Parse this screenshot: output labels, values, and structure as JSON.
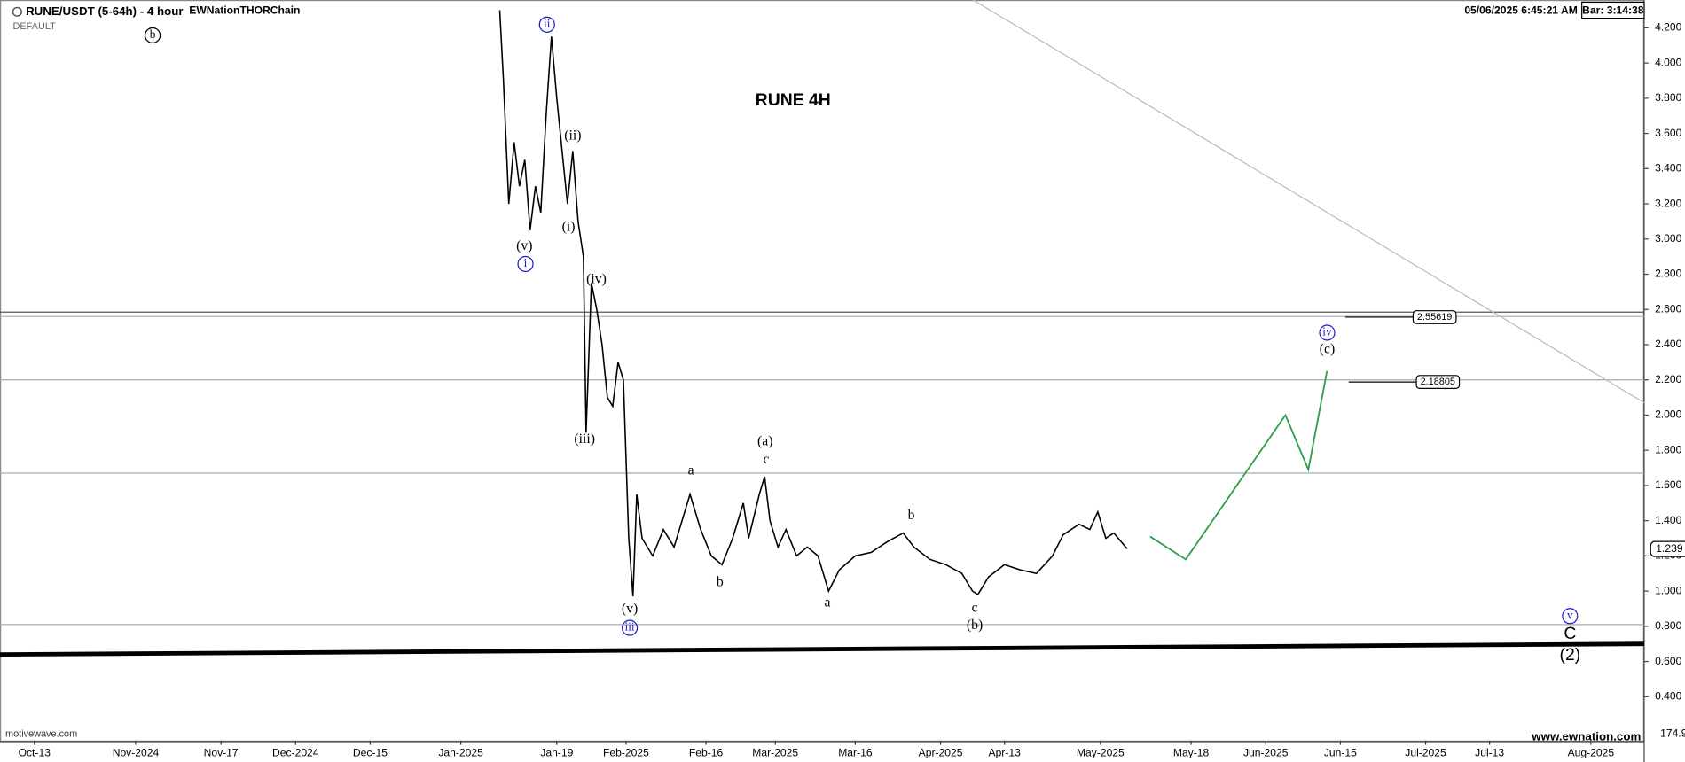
{
  "chart_data": {
    "type": "line",
    "title": "RUNE 4H",
    "header": {
      "symbol": "RUNE/USDT (5-64h) - 4 hour",
      "template": "DEFAULT",
      "account": "EWNationTHORChain",
      "datetime": "05/06/2025 6:45:21 AM",
      "bar_timer": "Bar: 3:14:38"
    },
    "watermark_left": "motivewave.com",
    "watermark_right": "www.ewnation.com",
    "volume_axis_label": "174.9",
    "last_price": 1.239,
    "xlim": [
      -6.45,
      302
    ],
    "xticks": [
      {
        "value": 0,
        "label": "Oct-13"
      },
      {
        "value": 19,
        "label": "Nov-2024"
      },
      {
        "value": 35,
        "label": "Nov-17"
      },
      {
        "value": 49,
        "label": "Dec-2024"
      },
      {
        "value": 63,
        "label": "Dec-15"
      },
      {
        "value": 80,
        "label": "Jan-2025"
      },
      {
        "value": 98,
        "label": "Jan-19"
      },
      {
        "value": 111,
        "label": "Feb-2025"
      },
      {
        "value": 126,
        "label": "Feb-16"
      },
      {
        "value": 139,
        "label": "Mar-2025"
      },
      {
        "value": 154,
        "label": "Mar-16"
      },
      {
        "value": 170,
        "label": "Apr-2025"
      },
      {
        "value": 182,
        "label": "Apr-13"
      },
      {
        "value": 200,
        "label": "May-2025"
      },
      {
        "value": 217,
        "label": "May-18"
      },
      {
        "value": 231,
        "label": "Jun-2025"
      },
      {
        "value": 245,
        "label": "Jun-15"
      },
      {
        "value": 261,
        "label": "Jul-2025"
      },
      {
        "value": 273,
        "label": "Jul-13"
      },
      {
        "value": 292,
        "label": "Aug-2025"
      }
    ],
    "ylim": [
      0.151,
      4.358
    ],
    "yticks": [
      {
        "value": 0.4,
        "label": "0.400"
      },
      {
        "value": 0.6,
        "label": "0.600"
      },
      {
        "value": 0.8,
        "label": "0.800"
      },
      {
        "value": 1.0,
        "label": "1.000"
      },
      {
        "value": 1.2,
        "label": "1.200"
      },
      {
        "value": 1.4,
        "label": "1.400"
      },
      {
        "value": 1.6,
        "label": "1.600"
      },
      {
        "value": 1.8,
        "label": "1.800"
      },
      {
        "value": 2.0,
        "label": "2.000"
      },
      {
        "value": 2.2,
        "label": "2.200"
      },
      {
        "value": 2.4,
        "label": "2.400"
      },
      {
        "value": 2.6,
        "label": "2.600"
      },
      {
        "value": 2.8,
        "label": "2.800"
      },
      {
        "value": 3.0,
        "label": "3.000"
      },
      {
        "value": 3.2,
        "label": "3.200"
      },
      {
        "value": 3.4,
        "label": "3.400"
      },
      {
        "value": 3.6,
        "label": "3.600"
      },
      {
        "value": 3.8,
        "label": "3.800"
      },
      {
        "value": 4.0,
        "label": "4.000"
      },
      {
        "value": 4.2,
        "label": "4.200"
      }
    ],
    "series": [
      {
        "color": "#000000",
        "x": [
          87.3,
          88,
          89,
          90,
          91,
          92,
          93,
          94,
          95,
          96,
          97,
          98,
          99,
          100,
          101,
          102,
          103,
          103.5,
          104.5,
          105.5,
          106.5,
          107.5,
          108.5,
          109.5,
          110.5,
          111.5,
          112.3,
          113,
          114,
          116,
          118,
          120,
          122,
          123,
          125,
          127,
          129,
          131,
          133,
          134,
          136,
          137,
          138,
          139.5,
          141,
          143,
          145,
          147,
          149,
          151,
          154,
          157,
          160,
          163,
          165,
          168,
          171,
          174,
          176,
          177,
          179,
          182,
          185,
          188,
          191,
          193,
          196,
          198,
          199.5,
          201,
          202.5,
          205
        ],
        "values": [
          4.3,
          3.9,
          3.2,
          3.55,
          3.3,
          3.45,
          3.05,
          3.3,
          3.15,
          3.7,
          4.15,
          3.8,
          3.5,
          3.2,
          3.5,
          3.1,
          2.9,
          1.9,
          2.75,
          2.6,
          2.4,
          2.1,
          2.05,
          2.3,
          2.2,
          1.3,
          0.97,
          1.55,
          1.3,
          1.2,
          1.35,
          1.25,
          1.45,
          1.55,
          1.35,
          1.2,
          1.15,
          1.3,
          1.5,
          1.3,
          1.55,
          1.65,
          1.4,
          1.25,
          1.35,
          1.2,
          1.25,
          1.2,
          1.0,
          1.12,
          1.2,
          1.22,
          1.28,
          1.33,
          1.25,
          1.18,
          1.15,
          1.1,
          1.0,
          0.98,
          1.08,
          1.15,
          1.12,
          1.1,
          1.2,
          1.32,
          1.38,
          1.35,
          1.45,
          1.3,
          1.33,
          1.24
        ]
      },
      {
        "color": "#2e9e4a",
        "x": [
          209.3,
          216,
          234.7,
          239,
          242.5
        ],
        "values": [
          1.31,
          1.18,
          2.0,
          1.69,
          2.25
        ]
      }
    ],
    "levels": [
      2.585,
      2.56,
      2.2,
      1.67,
      0.81
    ],
    "trendlines": [
      {
        "x": [
          -6.45,
          302
        ],
        "values": [
          0.64,
          0.7
        ],
        "color": "#000000"
      },
      {
        "x": [
          176,
          302
        ],
        "values": [
          4.36,
          2.07
        ],
        "color": "#bbbbbb"
      }
    ],
    "targets": [
      2.55619,
      2.18805
    ],
    "wave_labels": [
      "b",
      "ii",
      "(ii)",
      "(i)",
      "(v)",
      "i",
      "(iv)",
      "(iii)",
      "(v)",
      "iii",
      "a",
      "b",
      "(a)",
      "c",
      "a",
      "b",
      "c",
      "(b)",
      "iv",
      "(c)",
      "v",
      "C",
      "(2)"
    ]
  }
}
